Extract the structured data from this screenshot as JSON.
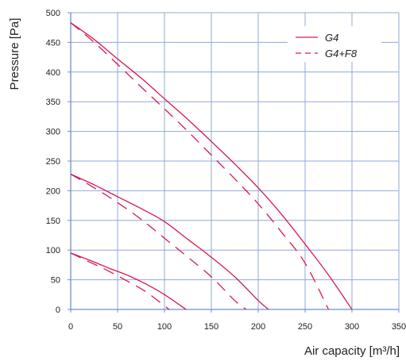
{
  "chart_data": {
    "type": "line",
    "xlabel": "Air capacity [m³/h]",
    "ylabel": "Pressure [Pa]",
    "xlim": [
      0,
      350
    ],
    "ylim": [
      0,
      500
    ],
    "x_ticks": [
      "0",
      "50",
      "100",
      "150",
      "200",
      "250",
      "300",
      "350"
    ],
    "y_ticks": [
      "0",
      "50",
      "100",
      "150",
      "200",
      "250",
      "300",
      "350",
      "400",
      "450",
      "500"
    ],
    "grid": true,
    "legend_position": "top-right",
    "legend": [
      {
        "label": "G4",
        "style": "solid"
      },
      {
        "label": "G4+F8",
        "style": "dashed"
      }
    ],
    "colors": {
      "curve": "#d6175c",
      "grid": "#8fa8d6",
      "axis": "#6e8fc9"
    },
    "series": [
      {
        "group": "G4",
        "style": "solid",
        "x": [
          0,
          25,
          50,
          75,
          100,
          125,
          150,
          175,
          200,
          225,
          250,
          275,
          300
        ],
        "y": [
          483,
          455,
          422,
          390,
          355,
          320,
          283,
          245,
          205,
          160,
          110,
          58,
          0
        ]
      },
      {
        "group": "G4+F8",
        "style": "dashed",
        "x": [
          0,
          25,
          50,
          75,
          100,
          125,
          150,
          175,
          200,
          225,
          250,
          275
        ],
        "y": [
          483,
          450,
          413,
          375,
          338,
          300,
          260,
          220,
          178,
          130,
          78,
          0
        ]
      },
      {
        "group": "G4",
        "style": "solid",
        "x": [
          0,
          25,
          50,
          75,
          100,
          125,
          150,
          175,
          200,
          211
        ],
        "y": [
          228,
          210,
          190,
          170,
          148,
          118,
          88,
          55,
          15,
          0
        ]
      },
      {
        "group": "G4+F8",
        "style": "dashed",
        "x": [
          0,
          25,
          50,
          75,
          100,
          125,
          150,
          175,
          187
        ],
        "y": [
          228,
          205,
          180,
          152,
          120,
          88,
          55,
          15,
          0
        ]
      },
      {
        "group": "G4",
        "style": "solid",
        "x": [
          0,
          20,
          40,
          60,
          80,
          100,
          123
        ],
        "y": [
          95,
          83,
          70,
          58,
          43,
          25,
          0
        ]
      },
      {
        "group": "G4+F8",
        "style": "dashed",
        "x": [
          0,
          20,
          40,
          60,
          80,
          105
        ],
        "y": [
          95,
          80,
          65,
          48,
          30,
          0
        ]
      }
    ]
  }
}
